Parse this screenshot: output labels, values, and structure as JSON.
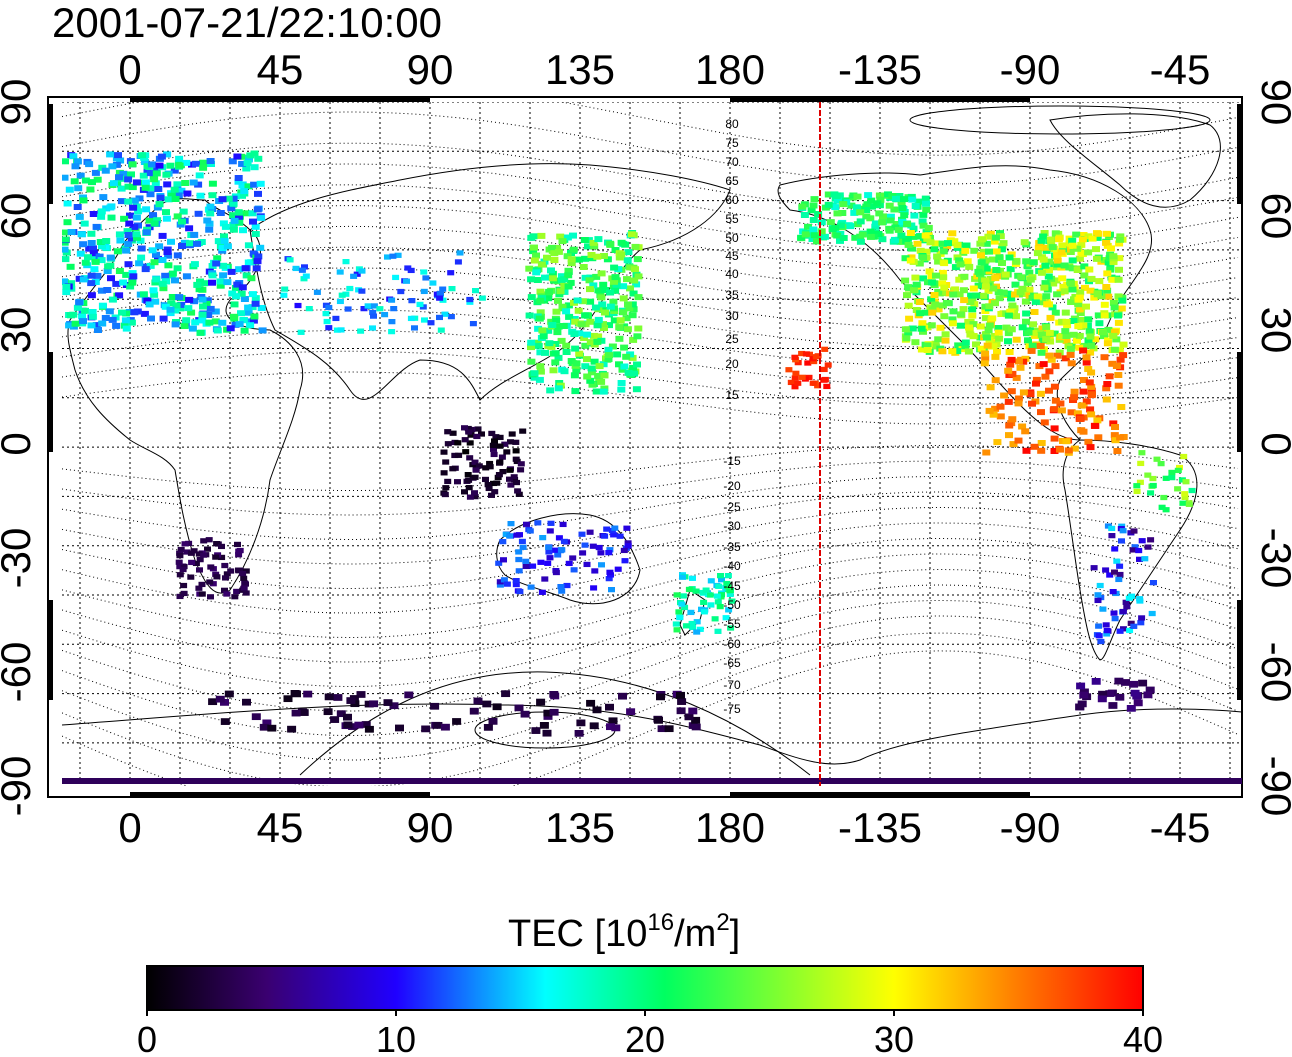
{
  "timestamp": "2001-07-21/22:10:00",
  "map": {
    "lon_ticks_top": [
      "0",
      "45",
      "90",
      "135",
      "180",
      "-135",
      "-90",
      "-45"
    ],
    "lon_ticks_bottom": [
      "0",
      "45",
      "90",
      "135",
      "180",
      "-135",
      "-90",
      "-45"
    ],
    "lat_ticks_left": [
      "90",
      "60",
      "30",
      "0",
      "-30",
      "-60",
      "-90"
    ],
    "lat_ticks_right": [
      "90",
      "60",
      "30",
      "0",
      "-30",
      "-60",
      "-90"
    ],
    "magnetic_latitude_labels": [
      "80",
      "75",
      "70",
      "65",
      "60",
      "55",
      "50",
      "45",
      "40",
      "35",
      "30",
      "25",
      "20",
      "15",
      "-15",
      "-20",
      "-25",
      "-30",
      "-35",
      "-40",
      "-45",
      "-50",
      "-55",
      "-60",
      "-65",
      "-70",
      "-75"
    ],
    "grid": true,
    "terminator_line_color": "#dd0000"
  },
  "colorbar": {
    "title": "TEC  [10",
    "title_exp": "16",
    "title_unit": "/m",
    "title_unit_exp": "2",
    "title_end": "]",
    "tick_labels": [
      "0",
      "10",
      "20",
      "30",
      "40"
    ],
    "range": [
      0,
      40
    ],
    "colormap": [
      "#000000",
      "#3a0070",
      "#2000ff",
      "#00ffff",
      "#00ff60",
      "#ffff00",
      "#ff8000",
      "#ff0000"
    ]
  }
}
